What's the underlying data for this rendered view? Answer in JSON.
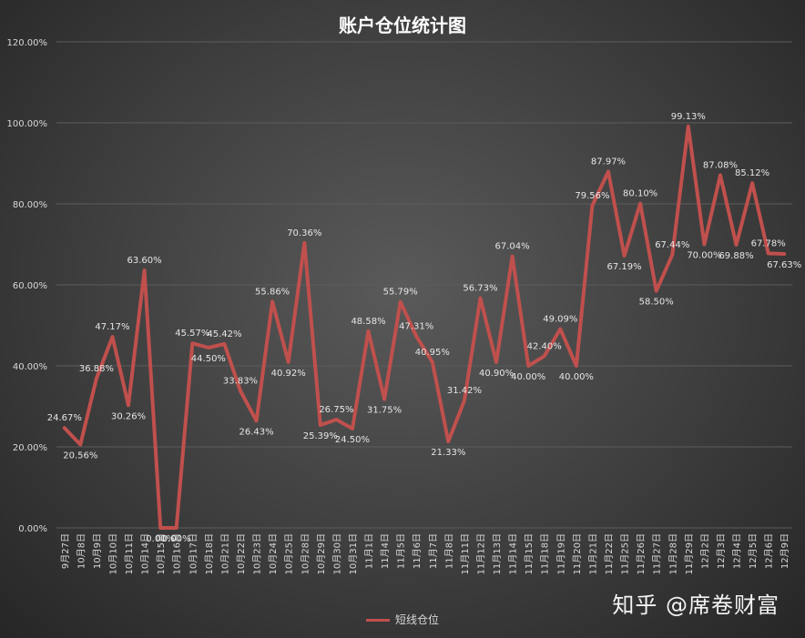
{
  "chart_data": {
    "type": "line",
    "title": "账户仓位统计图",
    "categories": [
      "9月27日",
      "10月8日",
      "10月9日",
      "10月10日",
      "10月11日",
      "10月14日",
      "10月15日",
      "10月16日",
      "10月17日",
      "10月18日",
      "10月21日",
      "10月22日",
      "10月23日",
      "10月24日",
      "10月25日",
      "10月28日",
      "10月29日",
      "10月30日",
      "10月31日",
      "11月1日",
      "11月4日",
      "11月5日",
      "11月6日",
      "11月7日",
      "11月8日",
      "11月11日",
      "11月12日",
      "11月13日",
      "11月14日",
      "11月15日",
      "11月18日",
      "11月19日",
      "11月20日",
      "11月21日",
      "11月22日",
      "11月25日",
      "11月26日",
      "11月27日",
      "11月28日",
      "11月29日",
      "12月2日",
      "12月3日",
      "12月4日",
      "12月5日",
      "12月6日",
      "12月9日"
    ],
    "series": [
      {
        "name": "短线仓位",
        "values": [
          24.67,
          20.56,
          36.88,
          47.17,
          30.26,
          63.6,
          0.0,
          0.0,
          45.57,
          44.5,
          45.42,
          33.83,
          26.43,
          55.86,
          40.92,
          70.36,
          25.39,
          26.75,
          24.5,
          48.58,
          31.75,
          55.79,
          47.31,
          40.95,
          21.33,
          31.42,
          56.73,
          40.9,
          67.04,
          40.0,
          42.4,
          49.09,
          40.0,
          79.56,
          87.97,
          67.19,
          80.1,
          58.5,
          67.44,
          99.13,
          70.0,
          87.08,
          69.88,
          85.12,
          67.78,
          67.63
        ],
        "labels": [
          "24.67%",
          "20.56%",
          "36.88%",
          "47.17%",
          "30.26%",
          "63.60%",
          "0.00%",
          "0.00%",
          "45.57%",
          "44.50%",
          "45.42%",
          "33.83%",
          "26.43%",
          "55.86%",
          "40.92%",
          "70.36%",
          "25.39%",
          "26.75%",
          "24.50%",
          "48.58%",
          "31.75%",
          "55.79%",
          "47.31%",
          "40.95%",
          "21.33%",
          "31.42%",
          "56.73%",
          "40.90%",
          "67.04%",
          "40.00%",
          "42.40%",
          "49.09%",
          "40.00%",
          "79.56%",
          "87.97%",
          "67.19%",
          "80.10%",
          "58.50%",
          "67.44%",
          "99.13%",
          "70.00%",
          "87.08%",
          "69.88%",
          "85.12%",
          "67.78%",
          "67.63%"
        ],
        "color": "#c0504d"
      }
    ],
    "ylim": [
      0,
      120
    ],
    "yticks": [
      "0.00%",
      "20.00%",
      "40.00%",
      "60.00%",
      "80.00%",
      "100.00%",
      "120.00%"
    ],
    "grid": true,
    "legend_position": "bottom"
  },
  "watermark": "知乎 @席卷财富",
  "colors": {
    "background": "#3e3e3e",
    "gridline": "#5c5c5c",
    "text": "#d9d9d9"
  }
}
